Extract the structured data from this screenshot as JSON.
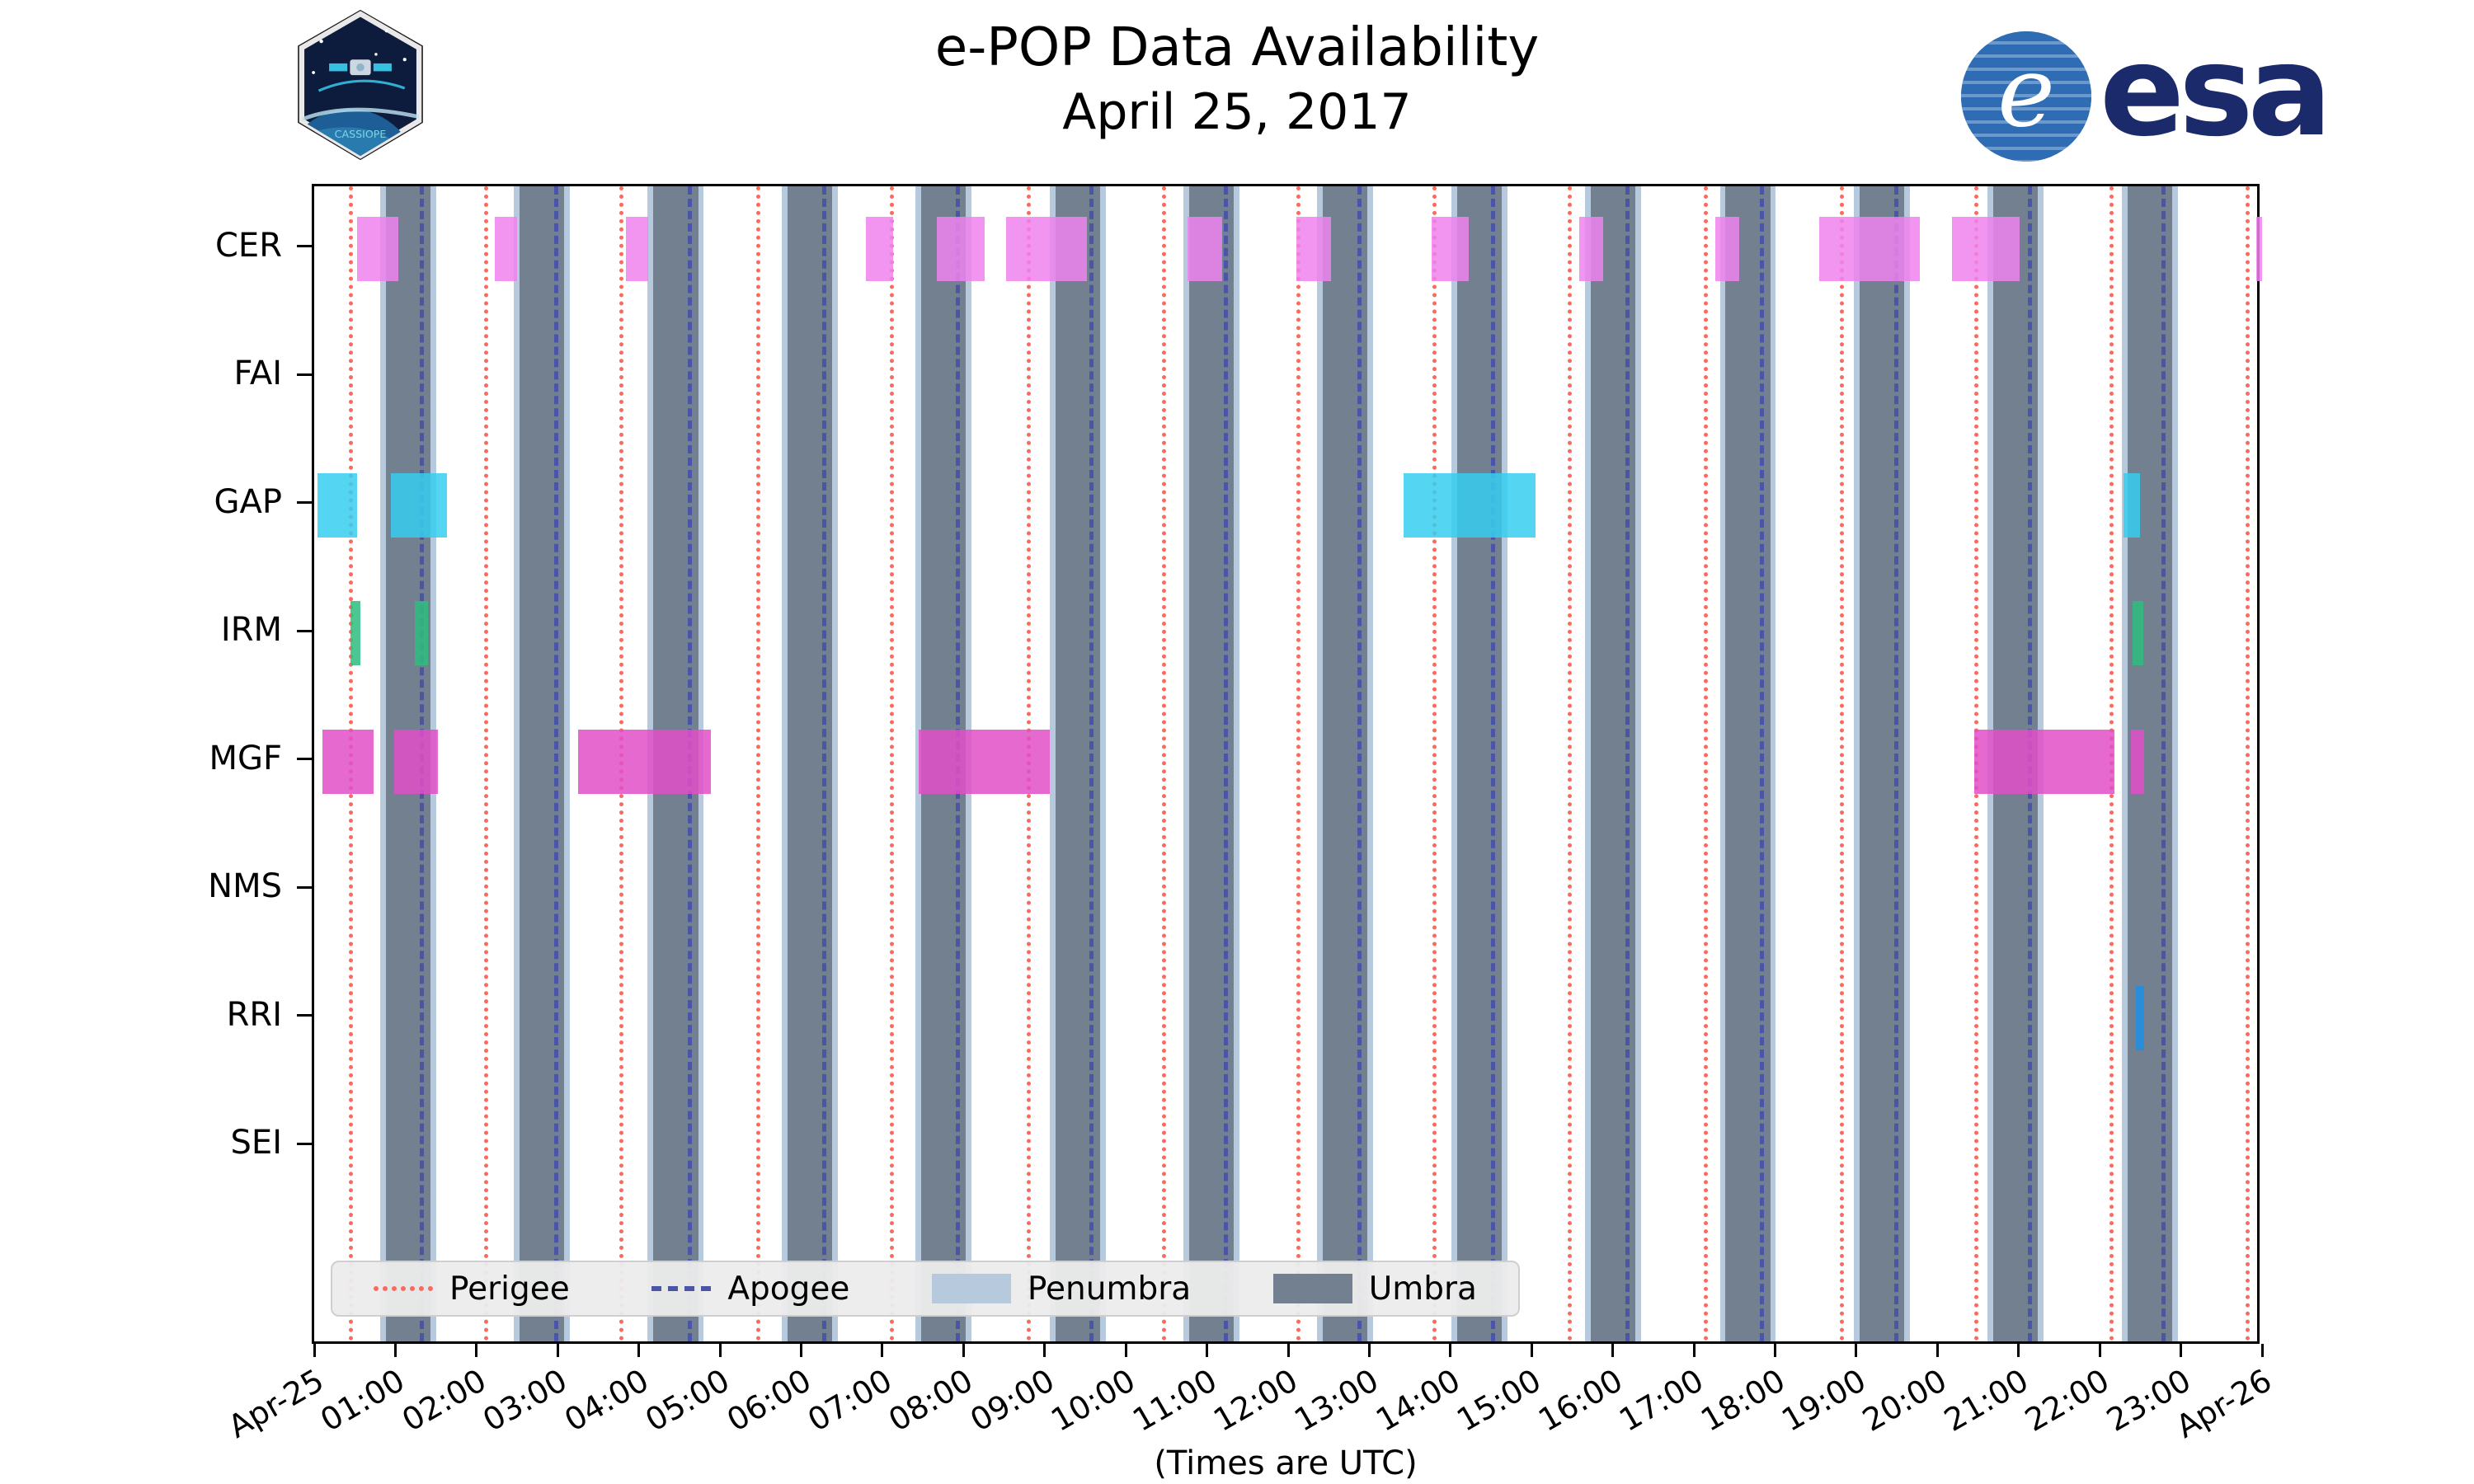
{
  "header": {
    "title": "e-POP Data Availability",
    "subtitle": "April 25, 2017",
    "esa_wordmark": "esa",
    "esa_globe_letter": "e",
    "cassiope_wordmark": "CASSIOPE"
  },
  "chart_data": {
    "type": "availability-timeline",
    "title": "e-POP Data Availability",
    "subtitle": "April 25, 2017",
    "xlabel": "(Times are UTC)",
    "x_axis": {
      "range_hours": [
        0,
        24
      ],
      "tick_interval_hours": 1,
      "tick_labels": [
        "Apr-25",
        "01:00",
        "02:00",
        "03:00",
        "04:00",
        "05:00",
        "06:00",
        "07:00",
        "08:00",
        "09:00",
        "10:00",
        "11:00",
        "12:00",
        "13:00",
        "14:00",
        "15:00",
        "16:00",
        "17:00",
        "18:00",
        "19:00",
        "20:00",
        "21:00",
        "22:00",
        "23:00",
        "Apr-26"
      ]
    },
    "instruments": [
      "CER",
      "FAI",
      "GAP",
      "IRM",
      "MGF",
      "NMS",
      "RRI",
      "SEI"
    ],
    "availability_hours": {
      "CER": [
        [
          0.53,
          1.04
        ],
        [
          2.23,
          2.5
        ],
        [
          3.84,
          4.12
        ],
        [
          6.8,
          7.13
        ],
        [
          7.67,
          8.26
        ],
        [
          8.53,
          9.52
        ],
        [
          10.76,
          11.19
        ],
        [
          12.1,
          12.53
        ],
        [
          13.77,
          14.23
        ],
        [
          15.59,
          15.88
        ],
        [
          17.26,
          17.56
        ],
        [
          18.54,
          19.78
        ],
        [
          20.18,
          21.01
        ],
        [
          23.93,
          24.0
        ]
      ],
      "FAI": [],
      "GAP": [
        [
          0.04,
          0.53
        ],
        [
          0.95,
          1.64
        ],
        [
          13.42,
          15.05
        ],
        [
          22.29,
          22.5
        ]
      ],
      "IRM": [
        [
          0.45,
          0.57
        ],
        [
          1.24,
          1.4
        ],
        [
          22.4,
          22.54
        ]
      ],
      "MGF": [
        [
          0.1,
          0.73
        ],
        [
          0.99,
          1.52
        ],
        [
          3.25,
          4.89
        ],
        [
          7.45,
          9.06
        ],
        [
          20.45,
          22.18
        ],
        [
          22.38,
          22.55
        ]
      ],
      "NMS": [],
      "RRI": [
        [
          22.45,
          22.55
        ]
      ],
      "SEI": []
    },
    "instrument_colors": {
      "CER": "#ee82ee",
      "FAI": "#ee82ee",
      "GAP": "#36cef0",
      "IRM": "#2ebd7f",
      "MGF": "#e24fc8",
      "NMS": "#e24fc8",
      "RRI": "#1f8fe8",
      "SEI": "#1f8fe8"
    },
    "umbra_hours": [
      [
        0.88,
        1.43
      ],
      [
        2.53,
        3.08
      ],
      [
        4.18,
        4.73
      ],
      [
        5.83,
        6.38
      ],
      [
        7.48,
        8.03
      ],
      [
        9.13,
        9.68
      ],
      [
        10.78,
        11.33
      ],
      [
        12.43,
        12.98
      ],
      [
        14.08,
        14.63
      ],
      [
        15.73,
        16.28
      ],
      [
        17.39,
        17.94
      ],
      [
        19.04,
        19.59
      ],
      [
        20.69,
        21.24
      ],
      [
        22.34,
        22.89
      ]
    ],
    "penumbra_pad_hours": 0.07,
    "perigee_hours": [
      0.45,
      2.12,
      3.79,
      5.47,
      7.12,
      8.8,
      10.47,
      12.13,
      13.8,
      15.47,
      17.15,
      18.82,
      20.48,
      22.15,
      23.82
    ],
    "apogee_hours": [
      1.33,
      2.98,
      4.63,
      6.28,
      7.93,
      9.58,
      11.23,
      12.88,
      14.53,
      16.18,
      17.84,
      19.49,
      21.14,
      22.79
    ],
    "colors": {
      "perigee": "#fb6a5c",
      "apogee": "#4a55a8",
      "penumbra": "#b7c9dd",
      "umbra": "#73808f"
    },
    "legend": {
      "position": "lower-left-inside",
      "items": [
        {
          "label": "Perigee",
          "swatch": "dotted-line",
          "color": "#fb6a5c"
        },
        {
          "label": "Apogee",
          "swatch": "dashed-line",
          "color": "#4a55a8"
        },
        {
          "label": "Penumbra",
          "swatch": "patch",
          "color": "#b7c9dd"
        },
        {
          "label": "Umbra",
          "swatch": "patch",
          "color": "#73808f"
        }
      ]
    }
  }
}
